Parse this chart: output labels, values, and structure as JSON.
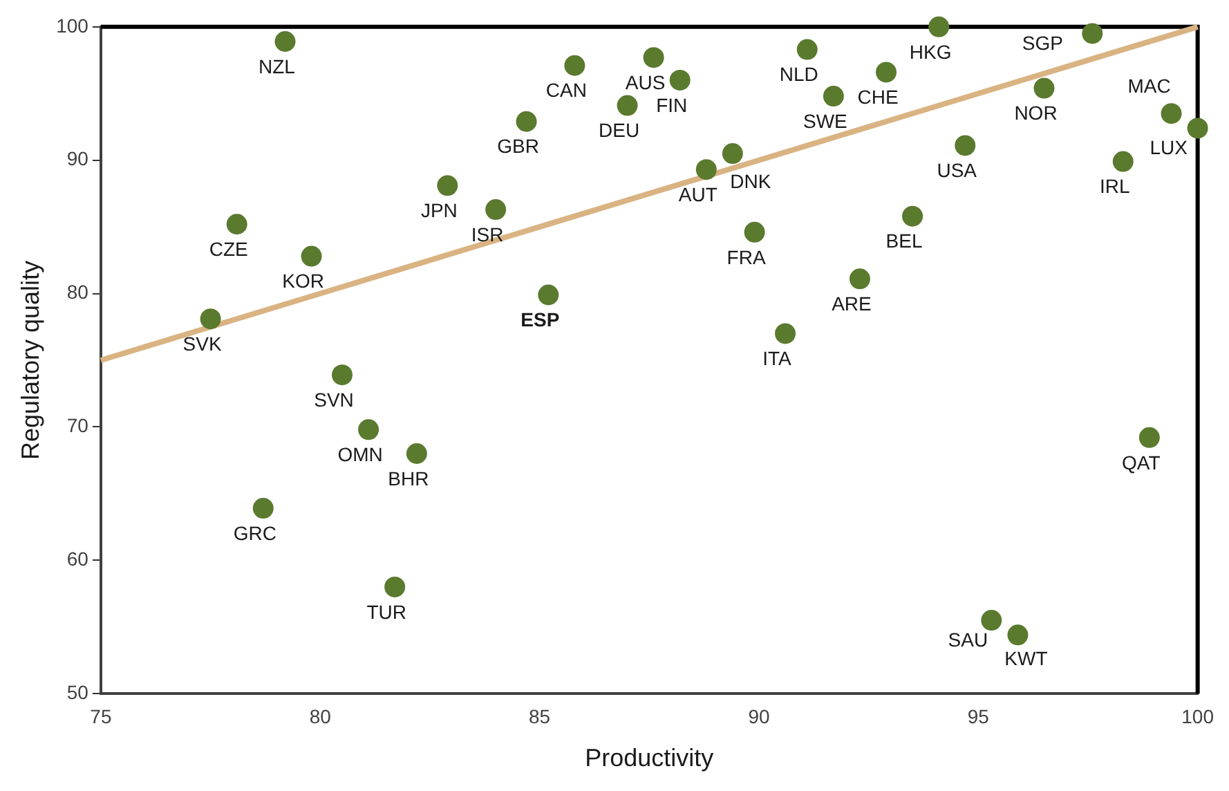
{
  "chart_data": {
    "type": "scatter",
    "xlabel": "Productivity",
    "ylabel": "Regulatory quality",
    "xlim": [
      75,
      100
    ],
    "xticks": [
      75,
      80,
      85,
      90,
      95,
      100
    ],
    "ylim": [
      50,
      100
    ],
    "yticks": [
      50,
      60,
      70,
      80,
      90,
      100
    ],
    "grid": false,
    "legend": false,
    "marker": "circle",
    "series": [
      {
        "color": "#5a7a2e",
        "x": [
          79.2,
          78.1,
          79.8,
          77.5,
          80.5,
          81.1,
          82.2,
          78.7,
          81.7,
          82.9,
          84.0,
          84.7,
          85.8,
          85.2,
          87.0,
          87.6,
          88.2,
          88.8,
          89.4,
          89.9,
          90.6,
          91.1,
          91.7,
          92.9,
          92.3,
          93.5,
          94.1,
          94.7,
          95.3,
          95.9,
          96.5,
          97.6,
          98.3,
          98.9,
          99.4,
          100
        ],
        "values": [
          98.9,
          85.2,
          82.8,
          78.1,
          73.9,
          69.8,
          68.0,
          63.9,
          58.0,
          88.1,
          86.3,
          92.9,
          97.1,
          79.9,
          94.1,
          97.7,
          96.0,
          89.3,
          90.5,
          84.6,
          77.0,
          98.3,
          94.8,
          96.6,
          81.1,
          85.8,
          100,
          91.1,
          55.5,
          54.4,
          95.4,
          99.5,
          89.9,
          69.2,
          93.5,
          92.4
        ]
      },
      {
        "type": "line",
        "color": "#d9b382",
        "marker": "none",
        "line_style": "solid",
        "x": [
          75,
          100
        ],
        "values": [
          75,
          100
        ]
      }
    ],
    "annotations": [
      {
        "text": "NZL",
        "x": 79.2,
        "y": 98.9
      },
      {
        "text": "CZE",
        "x": 78.1,
        "y": 85.2
      },
      {
        "text": "KOR",
        "x": 79.8,
        "y": 82.8
      },
      {
        "text": "SVK",
        "x": 77.5,
        "y": 78.1
      },
      {
        "text": "SVN",
        "x": 80.5,
        "y": 73.9
      },
      {
        "text": "OMN",
        "x": 81.1,
        "y": 69.8
      },
      {
        "text": "BHR",
        "x": 82.2,
        "y": 68.0
      },
      {
        "text": "GRC",
        "x": 78.7,
        "y": 63.9
      },
      {
        "text": "TUR",
        "x": 81.7,
        "y": 58.0
      },
      {
        "text": "JPN",
        "x": 82.9,
        "y": 88.1
      },
      {
        "text": "ISR",
        "x": 84.0,
        "y": 86.3
      },
      {
        "text": "GBR",
        "x": 84.7,
        "y": 92.9
      },
      {
        "text": "CAN",
        "x": 85.8,
        "y": 97.1
      },
      {
        "text": "ESP",
        "x": 85.2,
        "y": 79.9
      },
      {
        "text": "DEU",
        "x": 87.0,
        "y": 94.1
      },
      {
        "text": "AUS",
        "x": 87.6,
        "y": 97.7
      },
      {
        "text": "FIN",
        "x": 88.2,
        "y": 96.0
      },
      {
        "text": "AUT",
        "x": 88.8,
        "y": 89.3
      },
      {
        "text": "DNK",
        "x": 89.4,
        "y": 90.5
      },
      {
        "text": "FRA",
        "x": 89.9,
        "y": 84.6
      },
      {
        "text": "ITA",
        "x": 90.6,
        "y": 77.0
      },
      {
        "text": "NLD",
        "x": 91.1,
        "y": 98.3
      },
      {
        "text": "SWE",
        "x": 91.7,
        "y": 94.8
      },
      {
        "text": "CHE",
        "x": 92.9,
        "y": 96.6
      },
      {
        "text": "ARE",
        "x": 92.3,
        "y": 81.1
      },
      {
        "text": "BEL",
        "x": 93.5,
        "y": 85.8
      },
      {
        "text": "HKG",
        "x": 94.1,
        "y": 100
      },
      {
        "text": "USA",
        "x": 94.7,
        "y": 91.1
      },
      {
        "text": "SAU",
        "x": 95.3,
        "y": 55.5
      },
      {
        "text": "KWT",
        "x": 95.9,
        "y": 54.4
      },
      {
        "text": "NOR",
        "x": 96.5,
        "y": 95.4
      },
      {
        "text": "SGP",
        "x": 97.6,
        "y": 99.5
      },
      {
        "text": "IRL",
        "x": 98.3,
        "y": 89.9
      },
      {
        "text": "QAT",
        "x": 98.9,
        "y": 69.2
      },
      {
        "text": "MAC",
        "x": 99.4,
        "y": 93.5
      },
      {
        "text": "LUX",
        "x": 100,
        "y": 92.4
      }
    ]
  }
}
